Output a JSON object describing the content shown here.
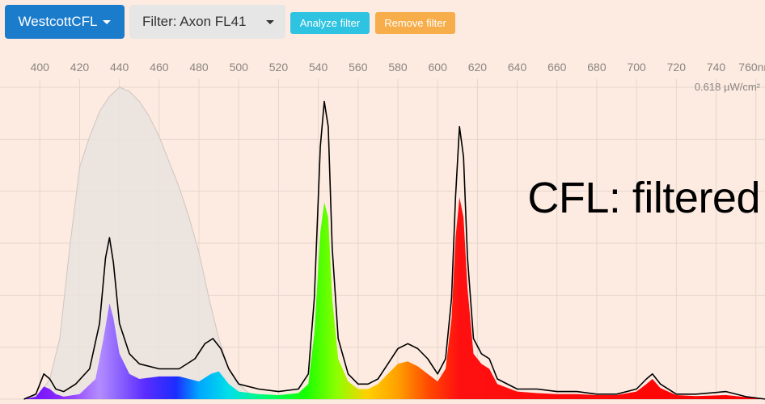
{
  "toolbar": {
    "source_label": "WestcottCFL",
    "filter_label": "Filter: Axon FL41",
    "analyze_label": "Analyze filter",
    "remove_label": "Remove filter"
  },
  "colors": {
    "background": "#fdebe1",
    "source_button": "#1b7ccc",
    "analyze_button": "#2ec3e0",
    "remove_button": "#f6ad4a",
    "filter_curve_fill": "#e9e3de",
    "outline": "#000000"
  },
  "overlay_text": "CFL: filtered",
  "chart_data": {
    "type": "area",
    "xlabel": "",
    "x_unit": "nm",
    "y_max_label": "0.618 µW/cm²",
    "xlim": [
      395,
      765
    ],
    "ylim": [
      0,
      0.618
    ],
    "x_ticks": [
      400,
      420,
      440,
      460,
      480,
      500,
      520,
      540,
      560,
      580,
      600,
      620,
      640,
      660,
      680,
      700,
      720,
      740,
      760
    ],
    "grid": true,
    "series": [
      {
        "kind": "filter-transmission",
        "x": [
          392,
          400,
          405,
          410,
          415,
          420,
          425,
          430,
          435,
          440,
          445,
          450,
          455,
          460,
          465,
          470,
          475,
          480,
          485,
          490,
          495,
          500,
          505,
          510,
          515,
          520,
          530,
          540,
          560,
          600,
          700,
          765
        ],
        "y": [
          0.0,
          0.01,
          0.04,
          0.12,
          0.3,
          0.46,
          0.52,
          0.57,
          0.6,
          0.618,
          0.61,
          0.59,
          0.56,
          0.52,
          0.47,
          0.42,
          0.36,
          0.29,
          0.2,
          0.12,
          0.06,
          0.03,
          0.012,
          0.006,
          0.003,
          0.0,
          0.0,
          0.0,
          0.0,
          0.0,
          0.0,
          0.0
        ]
      },
      {
        "kind": "unfiltered-outline",
        "x": [
          392,
          398,
          402,
          405,
          408,
          412,
          418,
          425,
          430,
          433,
          435,
          437,
          440,
          445,
          450,
          460,
          470,
          478,
          483,
          487,
          491,
          495,
          500,
          510,
          520,
          530,
          535,
          538,
          541,
          543,
          545,
          547,
          550,
          555,
          560,
          565,
          570,
          575,
          580,
          585,
          590,
          595,
          600,
          604,
          607,
          609,
          611,
          613,
          615,
          618,
          622,
          626,
          630,
          640,
          650,
          660,
          670,
          680,
          690,
          700,
          705,
          708,
          712,
          720,
          730,
          745,
          755,
          765
        ],
        "y": [
          0.0,
          0.01,
          0.05,
          0.04,
          0.02,
          0.015,
          0.03,
          0.06,
          0.15,
          0.28,
          0.32,
          0.27,
          0.15,
          0.09,
          0.07,
          0.06,
          0.06,
          0.08,
          0.11,
          0.12,
          0.1,
          0.06,
          0.03,
          0.02,
          0.015,
          0.02,
          0.05,
          0.2,
          0.5,
          0.59,
          0.54,
          0.3,
          0.12,
          0.05,
          0.03,
          0.03,
          0.04,
          0.07,
          0.1,
          0.11,
          0.1,
          0.08,
          0.05,
          0.08,
          0.2,
          0.4,
          0.54,
          0.48,
          0.28,
          0.12,
          0.09,
          0.08,
          0.04,
          0.02,
          0.02,
          0.015,
          0.015,
          0.01,
          0.01,
          0.02,
          0.04,
          0.05,
          0.03,
          0.01,
          0.01,
          0.015,
          0.005,
          0.0
        ]
      },
      {
        "kind": "filtered-spectrum",
        "x": [
          392,
          398,
          402,
          405,
          408,
          412,
          420,
          428,
          432,
          435,
          437,
          440,
          445,
          450,
          460,
          470,
          480,
          486,
          490,
          495,
          500,
          510,
          520,
          530,
          535,
          538,
          541,
          543,
          545,
          547,
          550,
          555,
          560,
          565,
          570,
          575,
          580,
          585,
          590,
          595,
          600,
          604,
          607,
          609,
          611,
          613,
          615,
          618,
          622,
          626,
          630,
          640,
          650,
          660,
          670,
          680,
          690,
          700,
          705,
          708,
          712,
          720,
          730,
          745,
          755,
          765
        ],
        "y": [
          0.0,
          0.005,
          0.025,
          0.02,
          0.01,
          0.005,
          0.01,
          0.04,
          0.12,
          0.19,
          0.16,
          0.09,
          0.05,
          0.04,
          0.045,
          0.045,
          0.035,
          0.05,
          0.055,
          0.03,
          0.015,
          0.01,
          0.008,
          0.012,
          0.03,
          0.13,
          0.33,
          0.39,
          0.36,
          0.2,
          0.08,
          0.035,
          0.02,
          0.02,
          0.03,
          0.05,
          0.07,
          0.075,
          0.065,
          0.05,
          0.035,
          0.06,
          0.16,
          0.32,
          0.4,
          0.36,
          0.22,
          0.09,
          0.07,
          0.06,
          0.03,
          0.015,
          0.012,
          0.01,
          0.01,
          0.008,
          0.008,
          0.015,
          0.03,
          0.04,
          0.022,
          0.008,
          0.006,
          0.008,
          0.004,
          0.0
        ]
      }
    ]
  }
}
